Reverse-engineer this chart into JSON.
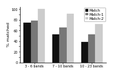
{
  "categories": [
    "3 - 6 bands",
    "7 - 10 bands",
    "10 - 23 bands"
  ],
  "series": [
    {
      "label": "Match",
      "color": "#111111",
      "values": [
        75,
        52,
        38
      ]
    },
    {
      "label": "Match-1",
      "color": "#777777",
      "values": [
        78,
        65,
        52
      ]
    },
    {
      "label": "Match-2",
      "color": "#cccccc",
      "values": [
        100,
        92,
        72
      ]
    }
  ],
  "ylabel": "% matched",
  "ylim": [
    0,
    105
  ],
  "yticks": [
    0,
    10,
    20,
    30,
    40,
    50,
    60,
    70,
    80,
    90,
    100
  ],
  "background_color": "#ffffff",
  "bar_width": 0.25,
  "legend_fontsize": 3.8,
  "tick_fontsize": 3.5,
  "ylabel_fontsize": 4.5,
  "xlabel_fontsize": 3.5
}
